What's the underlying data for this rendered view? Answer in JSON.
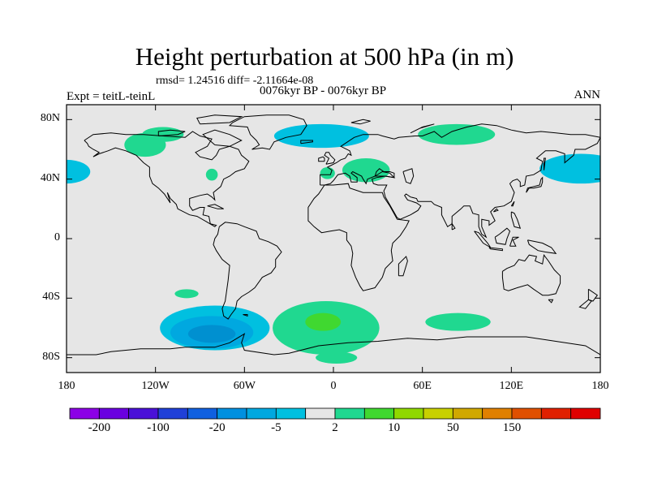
{
  "header": {
    "title": "Height perturbation at 500 hPa (in m)",
    "stats": "rmsd= 1.24516 diff= -2.11664e-08",
    "period": "0076kyr BP - 0076kyr BP",
    "experiment": "Expt = teitL-teinL",
    "season": "ANN"
  },
  "map": {
    "projection": "cylindrical-equidistant",
    "lon_range": [
      -180,
      180
    ],
    "lat_range": [
      -90,
      90
    ],
    "ocean_land_fill": "#e6e6e6",
    "lat_ticks": [
      {
        "value": 80,
        "label": "80N"
      },
      {
        "value": 40,
        "label": "40N"
      },
      {
        "value": 0,
        "label": "0"
      },
      {
        "value": -40,
        "label": "40S"
      },
      {
        "value": -80,
        "label": "80S"
      }
    ],
    "lon_ticks": [
      {
        "value": -180,
        "label": "180"
      },
      {
        "value": -120,
        "label": "120W"
      },
      {
        "value": -60,
        "label": "60W"
      },
      {
        "value": 0,
        "label": "0"
      },
      {
        "value": 60,
        "label": "60E"
      },
      {
        "value": 120,
        "label": "120E"
      },
      {
        "value": 180,
        "label": "180"
      }
    ],
    "anomaly_regions": [
      {
        "name": "north-pacific-west-lobe",
        "lon": -180,
        "lat": 45,
        "rlon": 16,
        "rlat": 8,
        "color": "#00c0e0"
      },
      {
        "name": "north-pacific-east-lobe",
        "lon": 167,
        "lat": 47,
        "rlon": 28,
        "rlat": 10,
        "color": "#00c0e0"
      },
      {
        "name": "north-atlantic",
        "lon": -8,
        "lat": 69,
        "rlon": 32,
        "rlat": 8,
        "color": "#00c0e0"
      },
      {
        "name": "canada-positive",
        "lon": -127,
        "lat": 63,
        "rlon": 14,
        "rlat": 8,
        "color": "#20d890"
      },
      {
        "name": "hudson-positive",
        "lon": -115,
        "lat": 70,
        "rlon": 14,
        "rlat": 5,
        "color": "#20d890"
      },
      {
        "name": "us-east-positive",
        "lon": -82,
        "lat": 43,
        "rlon": 4,
        "rlat": 4,
        "color": "#20d890"
      },
      {
        "name": "europe-positive",
        "lon": 22,
        "lat": 46,
        "rlon": 16,
        "rlat": 8,
        "color": "#20d890"
      },
      {
        "name": "iberia-positive",
        "lon": -4,
        "lat": 44,
        "rlon": 5,
        "rlat": 4,
        "color": "#20d890"
      },
      {
        "name": "siberia-positive",
        "lon": 83,
        "lat": 70,
        "rlon": 26,
        "rlat": 7,
        "color": "#20d890"
      },
      {
        "name": "south-pacific-positive",
        "lon": -99,
        "lat": -37,
        "rlon": 8,
        "rlat": 3,
        "color": "#20d890"
      },
      {
        "name": "southern-ocean-negative-outer",
        "lon": -80,
        "lat": -60,
        "rlon": 37,
        "rlat": 15,
        "color": "#00c0e0"
      },
      {
        "name": "southern-ocean-negative-inner",
        "lon": -82,
        "lat": -63,
        "rlon": 28,
        "rlat": 11,
        "color": "#00a8e0"
      },
      {
        "name": "southern-ocean-negative-core",
        "lon": -82,
        "lat": -64,
        "rlon": 16,
        "rlat": 6,
        "color": "#0090d0"
      },
      {
        "name": "south-atlantic-positive",
        "lon": -5,
        "lat": -60,
        "rlon": 36,
        "rlat": 18,
        "color": "#20d890"
      },
      {
        "name": "south-atlantic-positive-core",
        "lon": -7,
        "lat": -56,
        "rlon": 12,
        "rlat": 6,
        "color": "#40d830"
      },
      {
        "name": "antarctic-positive",
        "lon": 2,
        "lat": -80,
        "rlon": 14,
        "rlat": 4,
        "color": "#20d890"
      },
      {
        "name": "indian-ocean-positive",
        "lon": 84,
        "lat": -56,
        "rlon": 22,
        "rlat": 6,
        "color": "#20d890"
      }
    ]
  },
  "colorbar": {
    "colors": [
      "#8c00e6",
      "#6a00e0",
      "#4a10d8",
      "#2040d8",
      "#1060e0",
      "#0090e0",
      "#00a8e0",
      "#00c0e0",
      "#e6e6e6",
      "#20d890",
      "#40d830",
      "#90d800",
      "#c8d000",
      "#d0a800",
      "#e08000",
      "#e05000",
      "#e02000",
      "#e00000"
    ],
    "labels": [
      "-200",
      "-100",
      "-20",
      "-5",
      "2",
      "10",
      "50",
      "150"
    ],
    "label_slots": [
      1,
      3,
      5,
      7,
      9,
      11,
      13,
      15
    ]
  }
}
